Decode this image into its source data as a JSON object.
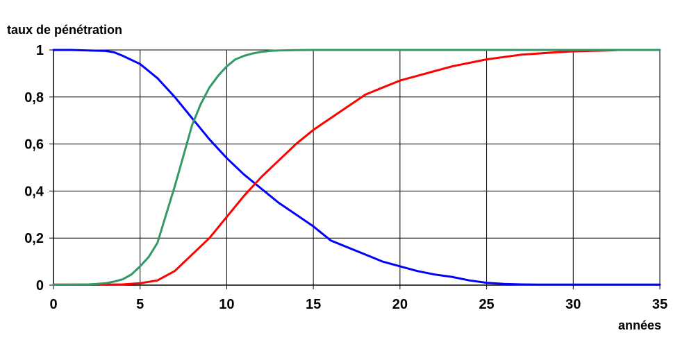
{
  "chart_data": {
    "type": "line",
    "ylabel": "taux de pénétration",
    "xlabel": "années",
    "xlim": [
      0,
      35
    ],
    "ylim": [
      0,
      1
    ],
    "x_ticks": [
      "0",
      "5",
      "10",
      "15",
      "20",
      "25",
      "30",
      "35"
    ],
    "x_tick_values": [
      0,
      5,
      10,
      15,
      20,
      25,
      30,
      35
    ],
    "y_ticks": [
      "0",
      "0,2",
      "0,4",
      "0,6",
      "0,8",
      "1"
    ],
    "y_tick_values": [
      0,
      0.2,
      0.4,
      0.6,
      0.8,
      1
    ],
    "grid": true,
    "legend": "none",
    "series": [
      {
        "color": "#0000ff",
        "x": [
          0,
          1,
          2,
          3,
          3.5,
          4,
          5,
          6,
          7,
          8,
          9,
          10,
          11,
          12,
          13,
          14,
          15,
          16,
          17,
          18,
          19,
          20,
          21,
          22,
          23,
          24,
          25,
          26,
          27,
          28,
          29,
          30,
          32,
          35
        ],
        "y": [
          1,
          1,
          0.998,
          0.996,
          0.99,
          0.975,
          0.94,
          0.88,
          0.8,
          0.71,
          0.62,
          0.54,
          0.47,
          0.41,
          0.35,
          0.3,
          0.25,
          0.19,
          0.16,
          0.13,
          0.1,
          0.08,
          0.06,
          0.045,
          0.035,
          0.02,
          0.01,
          0.005,
          0.003,
          0.002,
          0.002,
          0.002,
          0.002,
          0.002
        ]
      },
      {
        "color": "#ff0000",
        "x": [
          0,
          2,
          3,
          4,
          5,
          6,
          7,
          8,
          9,
          10,
          11,
          12,
          13,
          14,
          15,
          16,
          17,
          18,
          19,
          20,
          21,
          22,
          23,
          24,
          25,
          26,
          27,
          28,
          29,
          30,
          31,
          32,
          32.5
        ],
        "y": [
          0.002,
          0.002,
          0.002,
          0.003,
          0.008,
          0.02,
          0.06,
          0.13,
          0.2,
          0.29,
          0.38,
          0.46,
          0.53,
          0.6,
          0.66,
          0.71,
          0.76,
          0.81,
          0.84,
          0.87,
          0.89,
          0.91,
          0.93,
          0.945,
          0.96,
          0.97,
          0.98,
          0.985,
          0.99,
          0.994,
          0.996,
          0.998,
          0.999
        ]
      },
      {
        "color": "#339966",
        "x": [
          0,
          1,
          2,
          2.5,
          3,
          3.5,
          4,
          4.5,
          5,
          5.5,
          6,
          6.5,
          7,
          7.5,
          8,
          8.5,
          9,
          9.5,
          10,
          10.5,
          11,
          11.5,
          12,
          12.5,
          13,
          14,
          15,
          20,
          25,
          30,
          35
        ],
        "y": [
          0.002,
          0.002,
          0.003,
          0.005,
          0.008,
          0.015,
          0.025,
          0.045,
          0.08,
          0.12,
          0.18,
          0.3,
          0.42,
          0.55,
          0.68,
          0.77,
          0.84,
          0.89,
          0.93,
          0.96,
          0.975,
          0.985,
          0.992,
          0.996,
          0.998,
          0.999,
          1,
          1,
          1,
          1,
          1
        ]
      }
    ]
  }
}
